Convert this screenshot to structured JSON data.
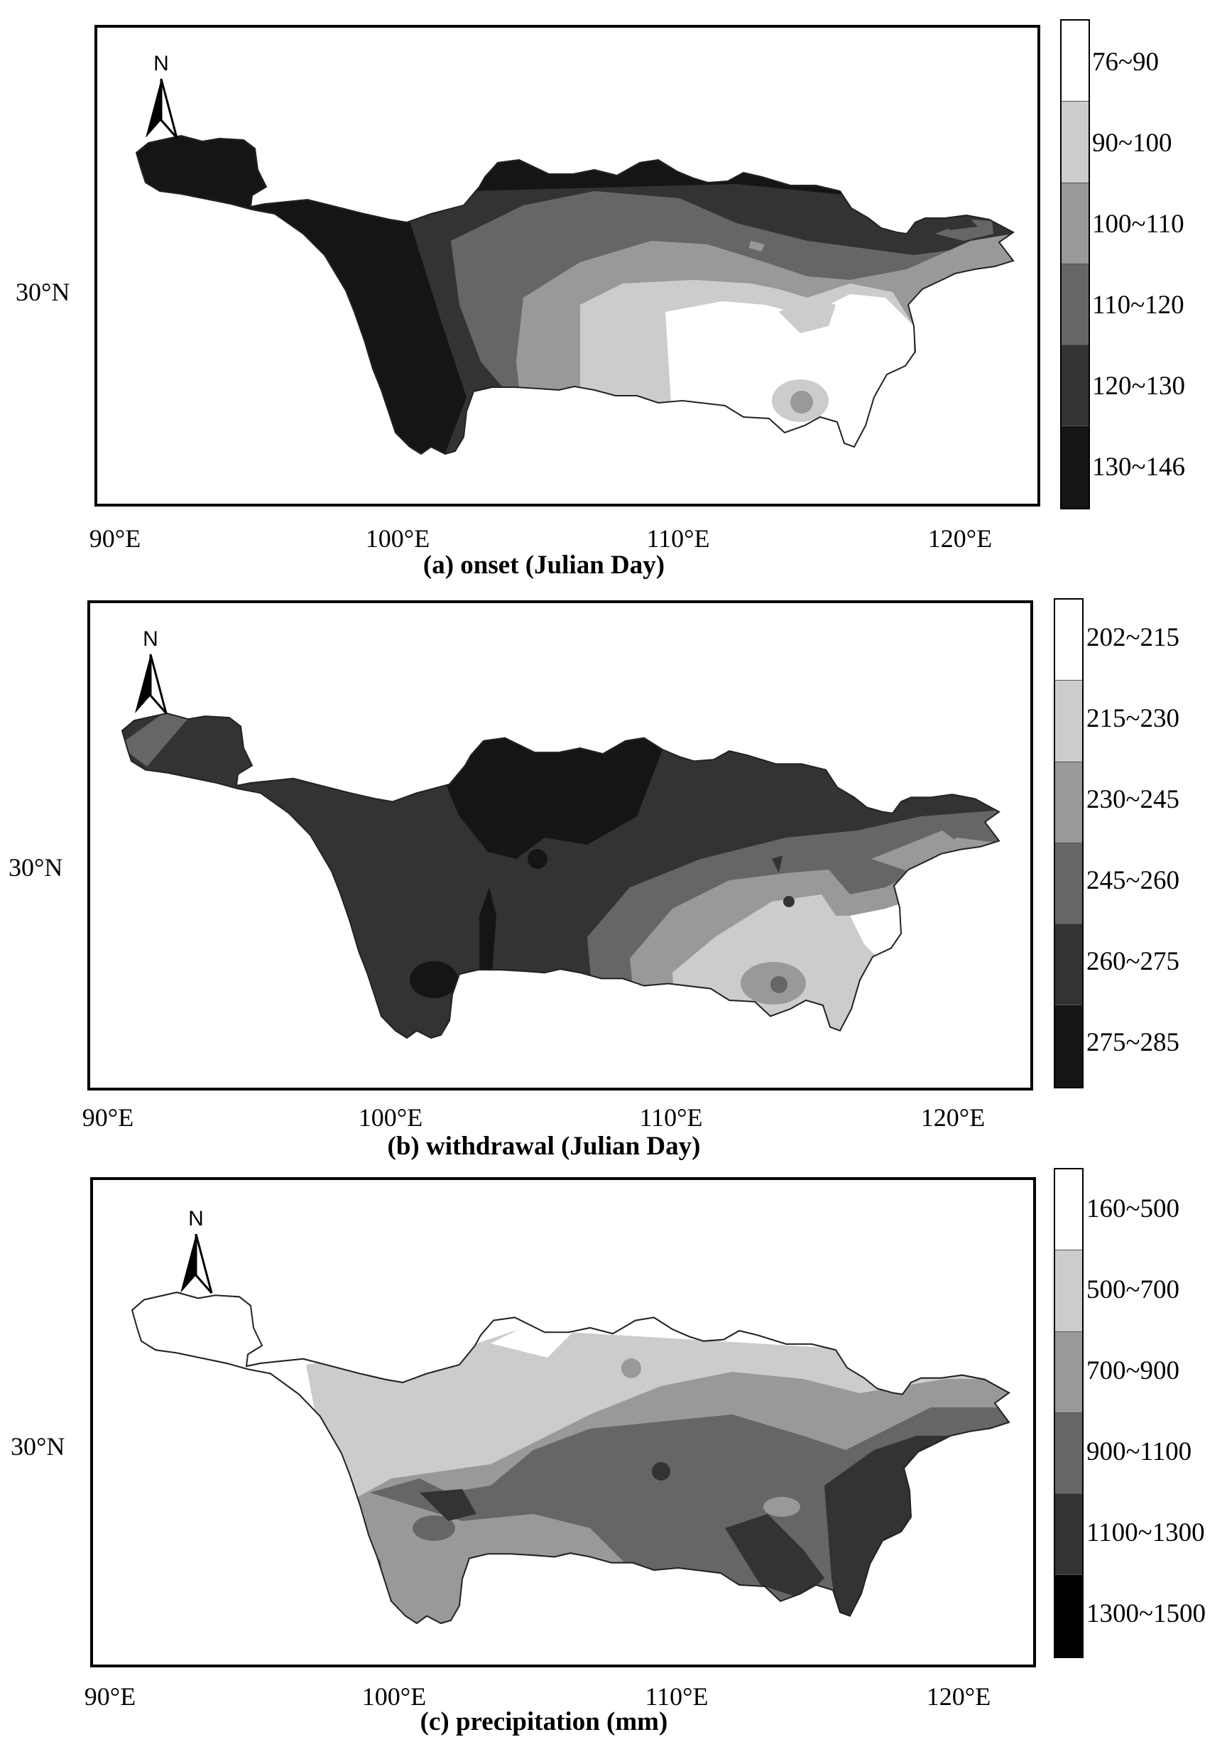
{
  "north_label": "N",
  "latitude_label": "30°N",
  "longitude_labels": [
    "90°E",
    "100°E",
    "110°E",
    "120°E"
  ],
  "panels": [
    {
      "caption": "(a) onset (Julian Day)",
      "legend": [
        {
          "label": "76~90",
          "color": "#ffffff"
        },
        {
          "label": "90~100",
          "color": "#cccccc"
        },
        {
          "label": "100~110",
          "color": "#999999"
        },
        {
          "label": "110~120",
          "color": "#666666"
        },
        {
          "label": "120~130",
          "color": "#333333"
        },
        {
          "label": "130~146",
          "color": "#151515"
        }
      ]
    },
    {
      "caption": "(b) withdrawal (Julian Day)",
      "legend": [
        {
          "label": "202~215",
          "color": "#ffffff"
        },
        {
          "label": "215~230",
          "color": "#cccccc"
        },
        {
          "label": "230~245",
          "color": "#999999"
        },
        {
          "label": "245~260",
          "color": "#666666"
        },
        {
          "label": "260~275",
          "color": "#333333"
        },
        {
          "label": "275~285",
          "color": "#151515"
        }
      ]
    },
    {
      "caption": "(c) precipitation (mm)",
      "legend": [
        {
          "label": "160~500",
          "color": "#ffffff"
        },
        {
          "label": "500~700",
          "color": "#cccccc"
        },
        {
          "label": "700~900",
          "color": "#999999"
        },
        {
          "label": "900~1100",
          "color": "#666666"
        },
        {
          "label": "1100~1300",
          "color": "#333333"
        },
        {
          "label": "1300~1500",
          "color": "#000000"
        }
      ]
    }
  ]
}
